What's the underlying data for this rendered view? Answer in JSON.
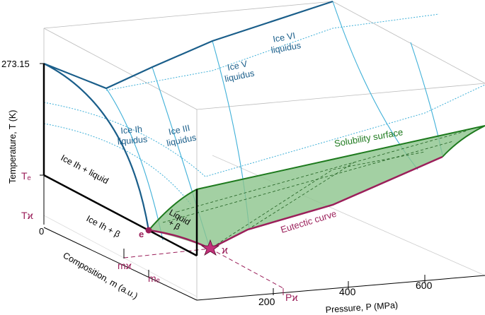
{
  "axes": {
    "temperature_label": "Temperature, T (K)",
    "composition_label": "Composition, m (a.u.)",
    "pressure_label": "Pressure, P (MPa)",
    "t_ticks": {
      "t273": "273.15",
      "te": "Tₑ",
      "tk": "Tϰ",
      "zero": "0"
    },
    "m_ticks": {
      "mk": "mϰ",
      "me": "mₑ"
    },
    "p_ticks": {
      "p200": "200",
      "pk": "Pϰ",
      "p400": "400",
      "p600": "600"
    }
  },
  "labels": {
    "ice_ih_liquidus": [
      "Ice Ih",
      "liquidus"
    ],
    "ice_iii_liquidus": [
      "Ice III",
      "liquidus"
    ],
    "ice_v_liquidus": [
      "Ice V",
      "liquidus"
    ],
    "ice_vi_liquidus": [
      "Ice VI",
      "liquidus"
    ],
    "ice_ih_liquid": "Ice Ih + liquid",
    "ice_ih_beta": "Ice Ih + β",
    "liquid_beta": [
      "Liquid",
      "+ β"
    ],
    "solubility_surface": "Solubility surface",
    "eutectic_curve": "Eutectic curve",
    "point_e": "e",
    "point_kappa": "ϰ"
  },
  "colors": {
    "liquidus": "#1a5e8a",
    "light_blue": "#3fb0d8",
    "green": "#1e7a1e",
    "green_fill": "#8cc48c",
    "eutectic": "#9b1f5a"
  }
}
